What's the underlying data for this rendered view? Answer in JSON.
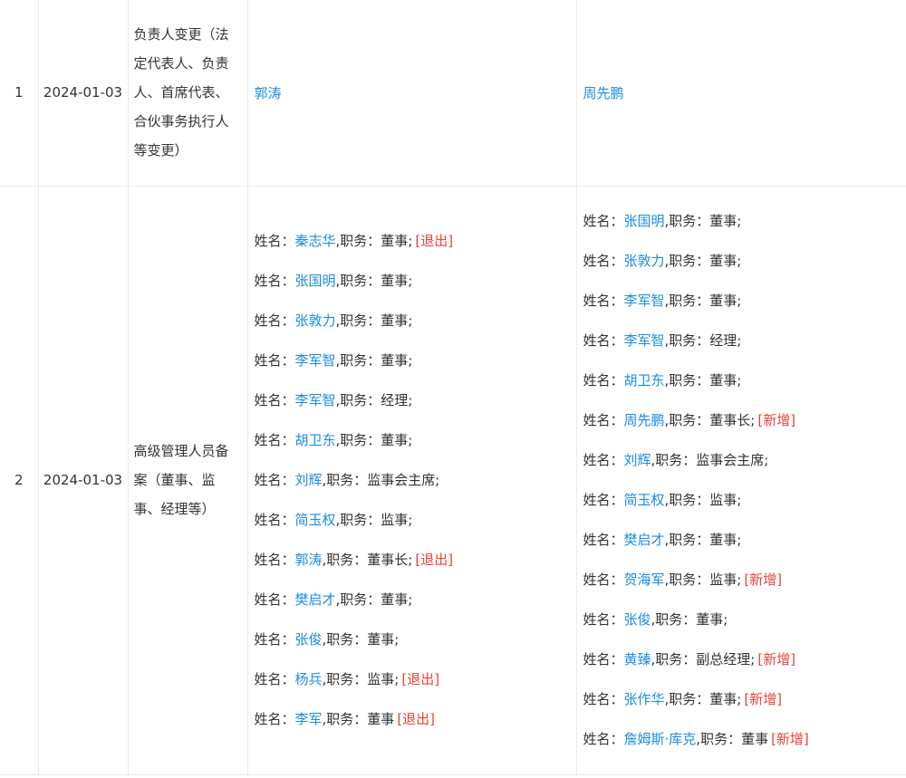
{
  "rows": [
    {
      "index": "1",
      "date": "2024-01-03",
      "type": "负责人变更（法定代表人、负责人、首席代表、合伙事务执行人等变更）",
      "before": "郭涛",
      "after": "周先鹏"
    },
    {
      "index": "2",
      "date": "2024-01-03",
      "type": "高级管理人员备案（董事、监事、经理等）",
      "before": [
        {
          "label": "姓名：",
          "name": "秦志华",
          "duty": ",职务：董事;",
          "tag": "[退出]"
        },
        {
          "label": "姓名：",
          "name": "张国明",
          "duty": ",职务：董事;"
        },
        {
          "label": "姓名：",
          "name": "张敦力",
          "duty": ",职务：董事;"
        },
        {
          "label": "姓名：",
          "name": "李军智",
          "duty": ",职务：董事;"
        },
        {
          "label": "姓名：",
          "name": "李军智",
          "duty": ",职务：经理;"
        },
        {
          "label": "姓名：",
          "name": "胡卫东",
          "duty": ",职务：董事;"
        },
        {
          "label": "姓名：",
          "name": "刘辉",
          "duty": ",职务：监事会主席;"
        },
        {
          "label": "姓名：",
          "name": "简玉权",
          "duty": ",职务：监事;"
        },
        {
          "label": "姓名：",
          "name": "郭涛",
          "duty": ",职务：董事长;",
          "tag": "[退出]"
        },
        {
          "label": "姓名：",
          "name": "樊启才",
          "duty": ",职务：董事;"
        },
        {
          "label": "姓名：",
          "name": "张俊",
          "duty": ",职务：董事;"
        },
        {
          "label": "姓名：",
          "name": "杨兵",
          "duty": ",职务：监事;",
          "tag": "[退出]"
        },
        {
          "label": "姓名：",
          "name": "李军",
          "duty": ",职务：董事",
          "tag": "[退出]"
        }
      ],
      "after": [
        {
          "label": "姓名：",
          "name": "张国明",
          "duty": ",职务：董事;"
        },
        {
          "label": "姓名：",
          "name": "张敦力",
          "duty": ",职务：董事;"
        },
        {
          "label": "姓名：",
          "name": "李军智",
          "duty": ",职务：董事;"
        },
        {
          "label": "姓名：",
          "name": "李军智",
          "duty": ",职务：经理;"
        },
        {
          "label": "姓名：",
          "name": "胡卫东",
          "duty": ",职务：董事;"
        },
        {
          "label": "姓名：",
          "name": "周先鹏",
          "duty": ",职务：董事长;",
          "tag": "[新增]"
        },
        {
          "label": "姓名：",
          "name": "刘辉",
          "duty": ",职务：监事会主席;"
        },
        {
          "label": "姓名：",
          "name": "简玉权",
          "duty": ",职务：监事;"
        },
        {
          "label": "姓名：",
          "name": "樊启才",
          "duty": ",职务：董事;"
        },
        {
          "label": "姓名：",
          "name": "贺海军",
          "duty": ",职务：监事;",
          "tag": "[新增]"
        },
        {
          "label": "姓名：",
          "name": "张俊",
          "duty": ",职务：董事;"
        },
        {
          "label": "姓名：",
          "name": "黄臻",
          "duty": ",职务：副总经理;",
          "tag": "[新增]"
        },
        {
          "label": "姓名：",
          "name": "张作华",
          "duty": ",职务：董事;",
          "tag": "[新增]"
        },
        {
          "label": "姓名：",
          "name": "詹姆斯·库克",
          "duty": ",职务：董事",
          "tag": "[新增]"
        }
      ]
    }
  ]
}
